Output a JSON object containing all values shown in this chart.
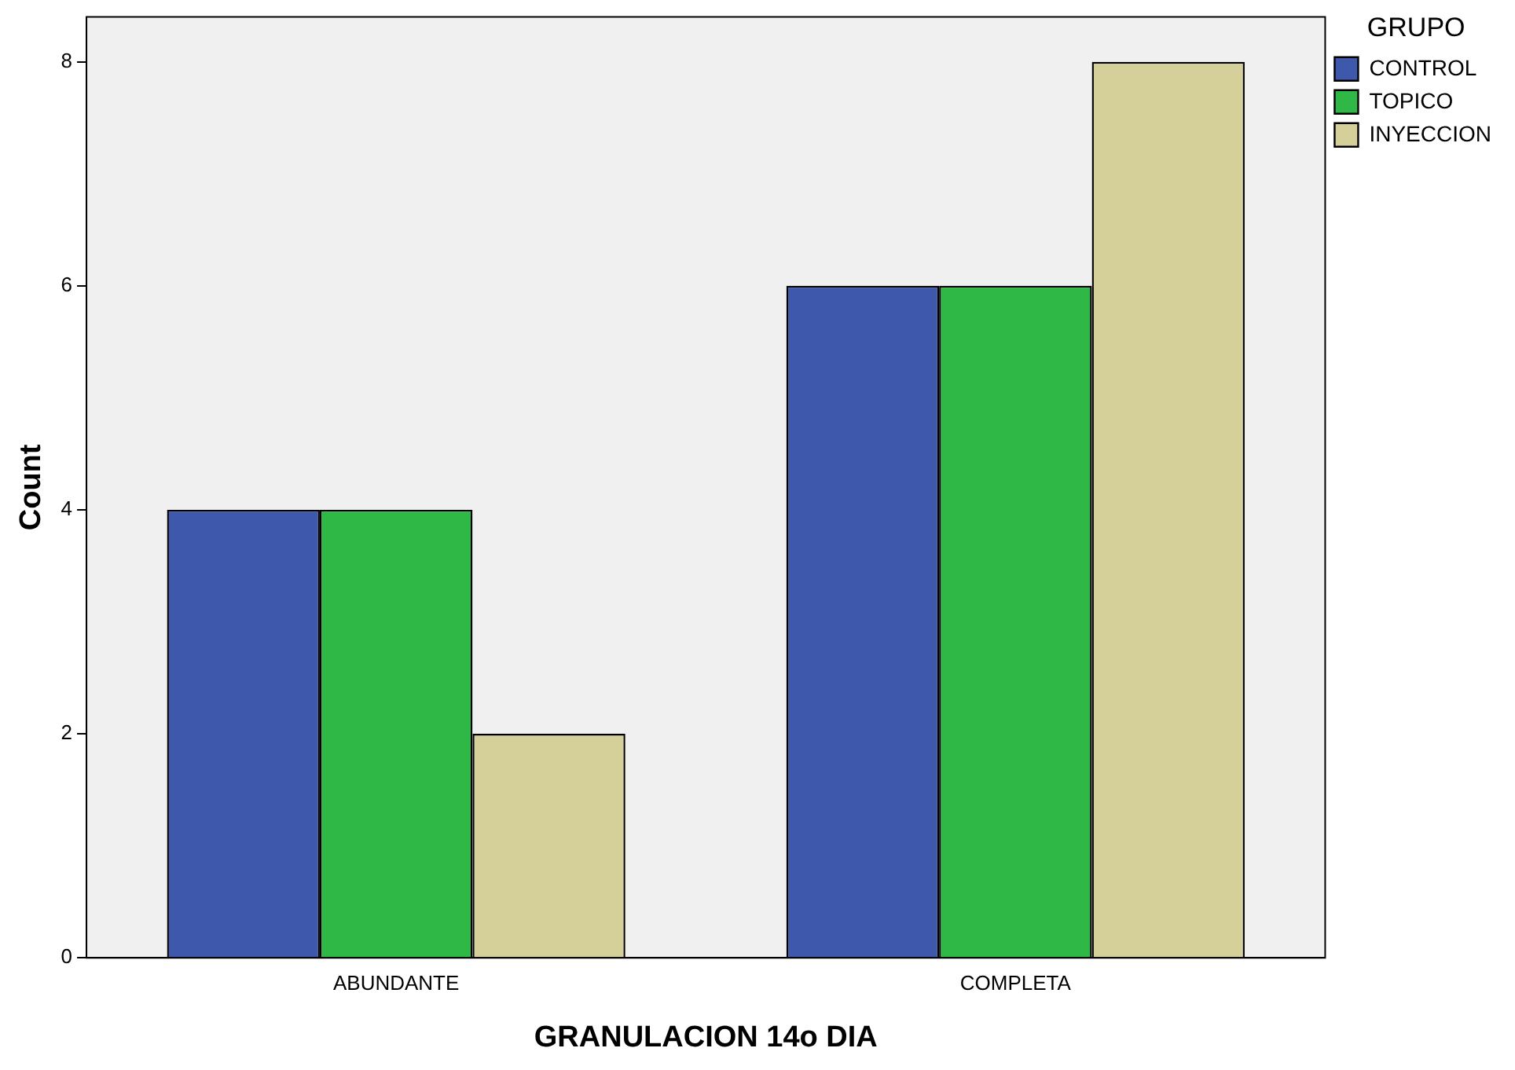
{
  "chart_data": {
    "type": "bar",
    "xlabel": "GRANULACION 14o DIA",
    "ylabel": "Count",
    "legend_title": "GRUPO",
    "categories": [
      "ABUNDANTE",
      "COMPLETA"
    ],
    "series": [
      {
        "name": "CONTROL",
        "color": "#3e58ac",
        "values": [
          4,
          6
        ]
      },
      {
        "name": "TOPICO",
        "color": "#2fb846",
        "values": [
          4,
          6
        ]
      },
      {
        "name": "INYECCION",
        "color": "#d5cf99",
        "values": [
          2,
          8
        ]
      }
    ],
    "ylim": [
      0,
      8.4
    ],
    "yticks": [
      0,
      2,
      4,
      6,
      8
    ],
    "grid": false,
    "legend": "right"
  }
}
